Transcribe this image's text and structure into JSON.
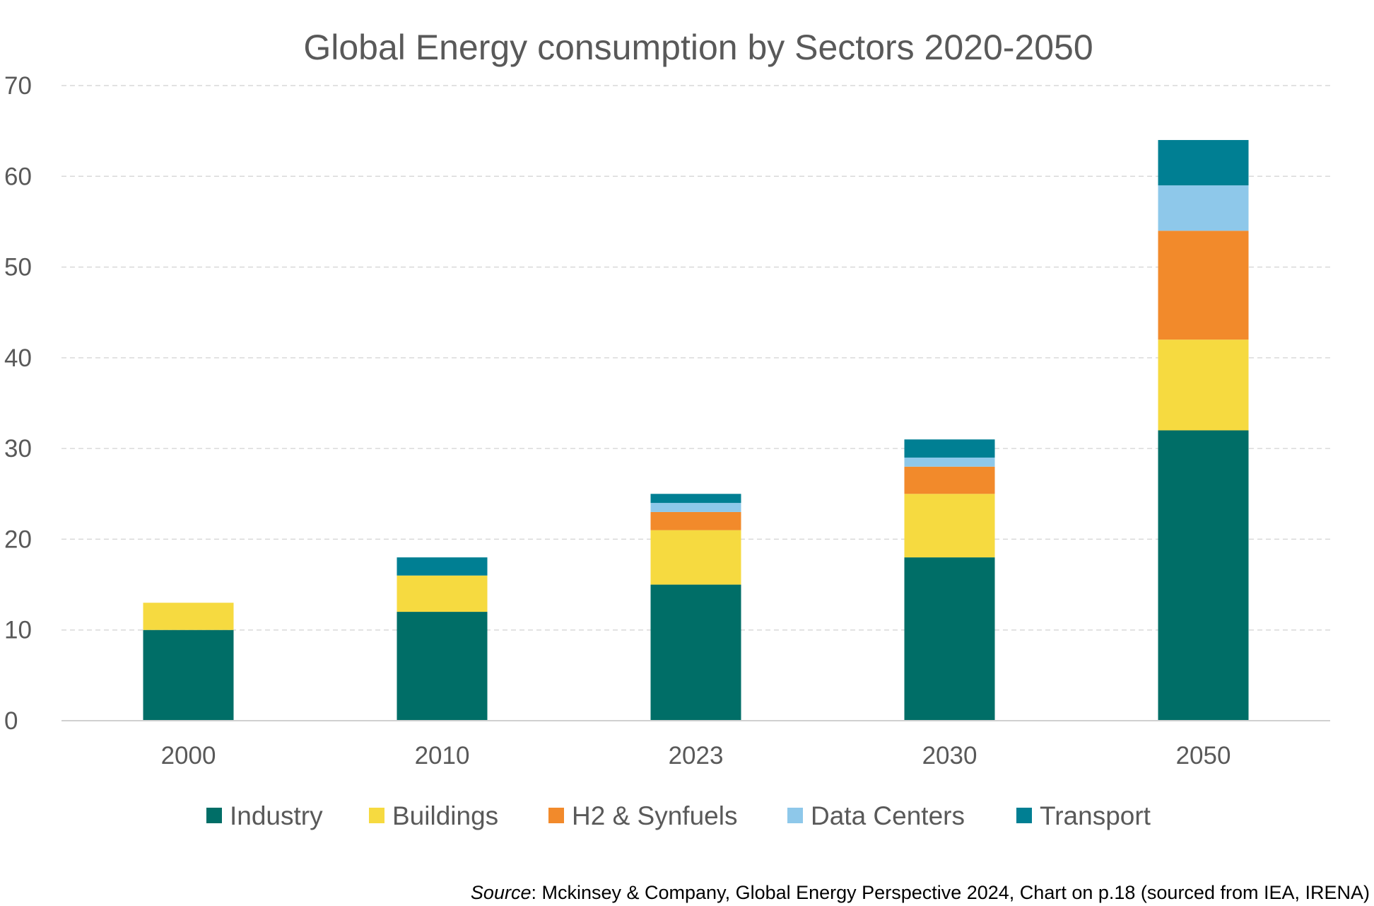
{
  "chart_data": {
    "type": "bar",
    "stacked": true,
    "title": "Global Energy consumption by Sectors 2020-2050",
    "xlabel": "",
    "ylabel": "",
    "categories": [
      "2000",
      "2010",
      "2023",
      "2030",
      "2050"
    ],
    "ylim": [
      0,
      70
    ],
    "yticks": [
      0,
      10,
      20,
      30,
      40,
      50,
      60,
      70
    ],
    "grid": true,
    "legend_position": "bottom",
    "series": [
      {
        "name": "Industry",
        "color": "#006E67",
        "values": [
          10,
          12,
          15,
          18,
          32
        ]
      },
      {
        "name": "Buildings",
        "color": "#F6DA40",
        "values": [
          3,
          4,
          6,
          7,
          10
        ]
      },
      {
        "name": "H2 & Synfuels",
        "color": "#F28A2B",
        "values": [
          0,
          0,
          2,
          3,
          12
        ]
      },
      {
        "name": "Data Centers",
        "color": "#8EC8EA",
        "values": [
          0,
          0,
          1,
          1,
          5
        ]
      },
      {
        "name": "Transport",
        "color": "#007F93",
        "values": [
          0,
          2,
          1,
          2,
          5
        ]
      }
    ],
    "source_label": "Source",
    "source_text": ": Mckinsey & Company, Global Energy Perspective 2024, Chart on p.18 (sourced from IEA, IRENA)"
  }
}
